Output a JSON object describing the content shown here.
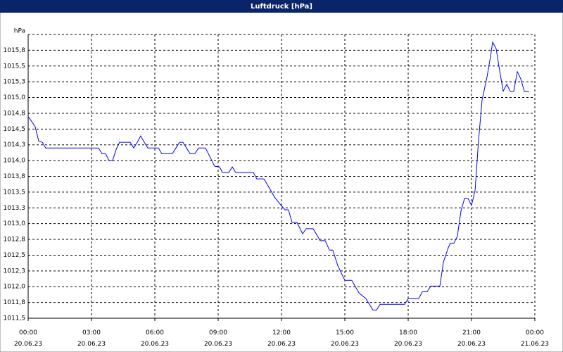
{
  "chart_data": {
    "type": "line",
    "title": "Luftdruck [hPa]",
    "y_label": "hPa",
    "x": [
      0,
      0.33,
      0.5,
      0.67,
      0.83,
      3.33,
      3.5,
      3.67,
      3.83,
      4,
      4.17,
      4.33,
      4.83,
      5,
      5.17,
      5.33,
      5.5,
      5.67,
      6.17,
      6.33,
      6.83,
      7,
      7.17,
      7.33,
      7.5,
      7.67,
      7.9,
      8.07,
      8.4,
      8.67,
      8.83,
      9.07,
      9.2,
      9.5,
      9.67,
      9.83,
      10.67,
      10.83,
      11.17,
      11.33,
      11.67,
      11.93,
      12.17,
      12.33,
      12.5,
      12.73,
      13,
      13.17,
      13.5,
      13.83,
      14.07,
      14.27,
      14.43,
      14.67,
      15,
      15.33,
      15.67,
      16,
      16.33,
      16.5,
      16.67,
      17.83,
      18,
      18.5,
      18.67,
      18.9,
      19.07,
      19.5,
      19.67,
      19.9,
      20,
      20.17,
      20.33,
      20.5,
      20.67,
      20.83,
      21,
      21.17,
      21.33,
      21.5,
      21.73,
      21.9,
      22,
      22.17,
      22.33,
      22.5,
      22.67,
      22.83,
      23,
      23.17,
      23.33,
      23.5,
      23.73
    ],
    "series": [
      {
        "name": "Luftdruck",
        "color": "#0000ff",
        "values": [
          1014.7,
          1014.54,
          1014.31,
          1014.29,
          1014.2,
          1014.2,
          1014.11,
          1014.11,
          1014.0,
          1014.0,
          1014.18,
          1014.29,
          1014.29,
          1014.2,
          1014.29,
          1014.39,
          1014.29,
          1014.2,
          1014.2,
          1014.11,
          1014.11,
          1014.2,
          1014.29,
          1014.29,
          1014.2,
          1014.11,
          1014.11,
          1014.2,
          1014.2,
          1014.02,
          1013.91,
          1013.9,
          1013.81,
          1013.81,
          1013.9,
          1013.81,
          1013.81,
          1013.71,
          1013.71,
          1013.62,
          1013.42,
          1013.31,
          1013.22,
          1013.22,
          1013.02,
          1013.02,
          1012.84,
          1012.92,
          1012.92,
          1012.73,
          1012.73,
          1012.58,
          1012.58,
          1012.33,
          1012.1,
          1012.1,
          1011.9,
          1011.81,
          1011.63,
          1011.63,
          1011.72,
          1011.72,
          1011.81,
          1011.81,
          1011.92,
          1011.92,
          1012.01,
          1012.01,
          1012.39,
          1012.62,
          1012.69,
          1012.69,
          1012.8,
          1013.2,
          1013.4,
          1013.4,
          1013.29,
          1013.53,
          1014.31,
          1014.96,
          1015.32,
          1015.65,
          1015.88,
          1015.77,
          1015.43,
          1015.1,
          1015.21,
          1015.1,
          1015.1,
          1015.41,
          1015.3,
          1015.1,
          1015.1
        ]
      }
    ],
    "xlim": [
      0,
      24
    ],
    "xticks": [
      {
        "value": 0,
        "label": "00:00 20.06.23"
      },
      {
        "value": 3,
        "label": "03:00 20.06.23"
      },
      {
        "value": 6,
        "label": "06:00 20.06.23"
      },
      {
        "value": 9,
        "label": "09:00 20.06.23"
      },
      {
        "value": 12,
        "label": "12:00 20.06.23"
      },
      {
        "value": 15,
        "label": "15:00 20.06.23"
      },
      {
        "value": 18,
        "label": "18:00 20.06.23"
      },
      {
        "value": 21,
        "label": "21:00 20.06.23"
      },
      {
        "value": 24,
        "label": "00:00 21.06.23"
      }
    ],
    "ylim": [
      1011.5,
      1016.0
    ],
    "yticks": [
      {
        "value": 1011.5,
        "label": "1011,5"
      },
      {
        "value": 1011.75,
        "label": "1011,8"
      },
      {
        "value": 1012.0,
        "label": "1012,0"
      },
      {
        "value": 1012.25,
        "label": "1012,3"
      },
      {
        "value": 1012.5,
        "label": "1012,5"
      },
      {
        "value": 1012.75,
        "label": "1012,8"
      },
      {
        "value": 1013.0,
        "label": "1013,0"
      },
      {
        "value": 1013.25,
        "label": "1013,3"
      },
      {
        "value": 1013.5,
        "label": "1013,5"
      },
      {
        "value": 1013.75,
        "label": "1013,8"
      },
      {
        "value": 1014.0,
        "label": "1014,0"
      },
      {
        "value": 1014.25,
        "label": "1014,3"
      },
      {
        "value": 1014.5,
        "label": "1014,5"
      },
      {
        "value": 1014.75,
        "label": "1014,8"
      },
      {
        "value": 1015.0,
        "label": "1015,0"
      },
      {
        "value": 1015.25,
        "label": "1015,3"
      },
      {
        "value": 1015.5,
        "label": "1015,5"
      },
      {
        "value": 1015.75,
        "label": "1015,8"
      }
    ],
    "grid": true
  }
}
